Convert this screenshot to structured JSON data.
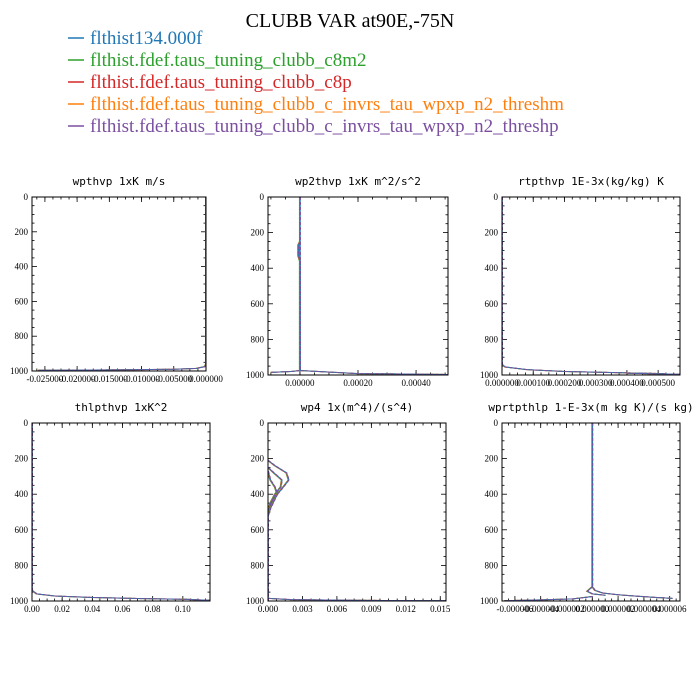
{
  "figure": {
    "title": "CLUBB VAR at90E,-75N"
  },
  "legend": [
    {
      "label": "flthist134.000f",
      "color": "#1f77b4"
    },
    {
      "label": "flthist.fdef.taus_tuning_clubb_c8m2",
      "color": "#2ca02c"
    },
    {
      "label": "flthist.fdef.taus_tuning_clubb_c8p",
      "color": "#d62728"
    },
    {
      "label": "flthist.fdef.taus_tuning_clubb_c_invrs_tau_wpxp_n2_threshm",
      "color": "#ff7f0e"
    },
    {
      "label": "flthist.fdef.taus_tuning_clubb_c_invrs_tau_wpxp_n2_threshp",
      "color": "#7b4fa0"
    }
  ],
  "chart_data": [
    {
      "type": "line",
      "title": "wpthvp  1xK m/s",
      "xlim": [
        -0.027,
        0.0
      ],
      "ylim": [
        1000,
        0
      ],
      "xticks": [
        -0.025,
        -0.02,
        -0.015,
        -0.01,
        -0.005,
        0.0
      ],
      "xtick_labels": [
        "-0.025000",
        "-0.020000",
        "-0.015000",
        "-0.010000",
        "-0.005000",
        "0.000000"
      ],
      "yticks": [
        0,
        200,
        400,
        600,
        800,
        1000
      ],
      "series": [
        {
          "x": [
            0,
            0,
            0,
            -0.0002,
            -0.0015,
            -0.005,
            -0.012,
            -0.02,
            -0.026
          ],
          "y": [
            0,
            900,
            960,
            975,
            985,
            990,
            993,
            995,
            996
          ]
        }
      ]
    },
    {
      "type": "line",
      "title": "wp2thvp  1xK m^2/s^2",
      "xlim": [
        -0.00011,
        0.00051
      ],
      "ylim": [
        1000,
        0
      ],
      "xticks": [
        0.0,
        0.0002,
        0.0004
      ],
      "xtick_labels": [
        "0.00000",
        "0.00020",
        "0.00040"
      ],
      "yticks": [
        0,
        200,
        400,
        600,
        800,
        1000
      ],
      "series": [
        {
          "x": [
            0,
            0,
            0,
            0,
            -3e-05,
            -0.0001
          ],
          "y": [
            0,
            600,
            950,
            975,
            980,
            985
          ]
        },
        {
          "x": [
            0,
            -6e-06,
            -6e-06,
            0,
            0,
            0.0002,
            0.00051
          ],
          "y": [
            250,
            270,
            330,
            360,
            975,
            992,
            997
          ]
        }
      ]
    },
    {
      "type": "line",
      "title": "rtpthvp  1E-3x(kg/kg) K",
      "xlim": [
        0.0,
        0.00057
      ],
      "ylim": [
        1000,
        0
      ],
      "xticks": [
        0.0,
        0.0001,
        0.0002,
        0.0003,
        0.0004,
        0.0005
      ],
      "xtick_labels": [
        "0.000000",
        "0.000100",
        "0.000200",
        "0.000300",
        "0.000400",
        "0.000500"
      ],
      "yticks": [
        0,
        200,
        400,
        600,
        800,
        1000
      ],
      "series": [
        {
          "x": [
            0,
            0,
            1e-05,
            8e-05,
            0.0002,
            0.00035,
            0.00045,
            0.00052
          ],
          "y": [
            0,
            940,
            955,
            970,
            980,
            986,
            990,
            992
          ]
        },
        {
          "x": [
            0.0004,
            0.0005,
            0.00057
          ],
          "y": [
            990,
            994,
            996
          ]
        }
      ]
    },
    {
      "type": "line",
      "title": "thlpthvp  1xK^2",
      "xlim": [
        0.0,
        0.118
      ],
      "ylim": [
        1000,
        0
      ],
      "xticks": [
        0.0,
        0.02,
        0.04,
        0.06,
        0.08,
        0.1
      ],
      "xtick_labels": [
        "0.00",
        "0.02",
        "0.04",
        "0.06",
        "0.08",
        "0.10"
      ],
      "yticks": [
        0,
        200,
        400,
        600,
        800,
        1000
      ],
      "series": [
        {
          "x": [
            0,
            0,
            0.003,
            0.015,
            0.04,
            0.07,
            0.1,
            0.11
          ],
          "y": [
            0,
            940,
            960,
            972,
            980,
            986,
            990,
            992
          ]
        },
        {
          "x": [
            0.1,
            0.11,
            0.118
          ],
          "y": [
            990,
            994,
            996
          ]
        }
      ]
    },
    {
      "type": "line",
      "title": "wp4  1x(m^4)/(s^4)",
      "xlim": [
        0.0,
        0.0155
      ],
      "ylim": [
        1000,
        0
      ],
      "xticks": [
        0.0,
        0.003,
        0.006,
        0.009,
        0.012,
        0.015
      ],
      "xtick_labels": [
        "0.000",
        "0.003",
        "0.006",
        "0.009",
        "0.012",
        "0.015"
      ],
      "yticks": [
        0,
        200,
        400,
        600,
        800,
        1000
      ],
      "series": [
        {
          "x": [
            0,
            0.0006,
            0.0016,
            0.0018,
            0.0012,
            0.0004,
            0,
            0
          ],
          "y": [
            210,
            240,
            280,
            320,
            370,
            430,
            490,
            1000
          ]
        },
        {
          "x": [
            0,
            0.0005,
            0.0012,
            0.0011,
            0.0006,
            0.0002,
            0
          ],
          "y": [
            250,
            280,
            320,
            360,
            400,
            450,
            500
          ]
        },
        {
          "x": [
            0,
            0.0002,
            0.0006,
            0.0008,
            0.0005,
            0.0002,
            0
          ],
          "y": [
            270,
            320,
            360,
            400,
            440,
            480,
            520
          ]
        },
        {
          "x": [
            0,
            0.002,
            0.006,
            0.01,
            0.0155
          ],
          "y": [
            985,
            992,
            995,
            997,
            998
          ]
        }
      ]
    },
    {
      "type": "line",
      "title": "wprtpthlp  1-E-3x(m kg K)/(s kg)",
      "xlim": [
        -7e-06,
        6.8e-06
      ],
      "ylim": [
        1000,
        0
      ],
      "xticks": [
        -6e-06,
        -4e-06,
        -2e-06,
        0.0,
        2e-06,
        4e-06,
        6e-06
      ],
      "xtick_labels": [
        "-0.000006",
        "-0.000004",
        "-0.000002",
        "0.000000",
        "0.000002",
        "0.000004",
        "0.000006"
      ],
      "yticks": [
        0,
        200,
        400,
        600,
        800,
        1000
      ],
      "series": [
        {
          "x": [
            0,
            0,
            2e-07,
            8e-07,
            2e-06,
            3.5e-06,
            5e-06,
            6.2e-06
          ],
          "y": [
            0,
            920,
            940,
            955,
            965,
            973,
            980,
            985
          ]
        },
        {
          "x": [
            0,
            -4e-07,
            0,
            1e-06
          ],
          "y": [
            920,
            945,
            960,
            968
          ]
        },
        {
          "x": [
            -6.8e-06,
            -4e-06,
            -1.5e-06,
            0
          ],
          "y": [
            998,
            994,
            988,
            975
          ]
        }
      ]
    }
  ]
}
